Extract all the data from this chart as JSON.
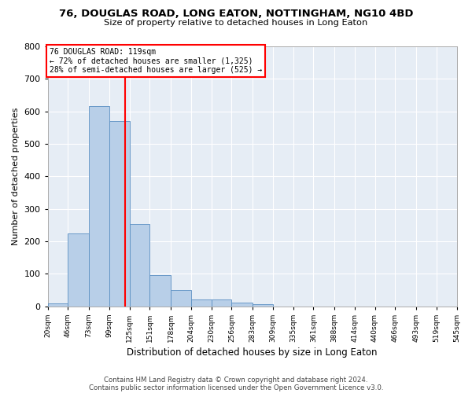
{
  "title1": "76, DOUGLAS ROAD, LONG EATON, NOTTINGHAM, NG10 4BD",
  "title2": "Size of property relative to detached houses in Long Eaton",
  "xlabel": "Distribution of detached houses by size in Long Eaton",
  "ylabel": "Number of detached properties",
  "footer1": "Contains HM Land Registry data © Crown copyright and database right 2024.",
  "footer2": "Contains public sector information licensed under the Open Government Licence v3.0.",
  "bar_color": "#b8cfe8",
  "bar_edge_color": "#5a8fc2",
  "bg_color": "#e6edf5",
  "grid_color": "#ffffff",
  "property_size": 119,
  "annotation_line1": "76 DOUGLAS ROAD: 119sqm",
  "annotation_line2": "← 72% of detached houses are smaller (1,325)",
  "annotation_line3": "28% of semi-detached houses are larger (525) →",
  "bin_edges": [
    20,
    46,
    73,
    99,
    125,
    151,
    178,
    204,
    230,
    256,
    283,
    309,
    335,
    361,
    388,
    414,
    440,
    466,
    493,
    519,
    545
  ],
  "bar_heights": [
    10,
    225,
    617,
    570,
    252,
    95,
    50,
    22,
    22,
    12,
    7,
    0,
    0,
    0,
    0,
    0,
    0,
    0,
    0,
    0
  ],
  "ylim": [
    0,
    800
  ],
  "yticks": [
    0,
    100,
    200,
    300,
    400,
    500,
    600,
    700,
    800
  ]
}
